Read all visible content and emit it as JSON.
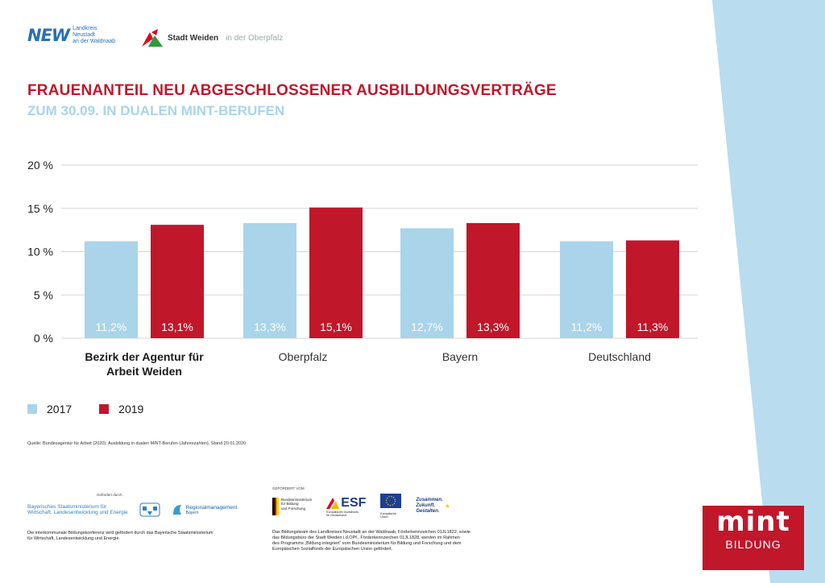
{
  "logos": {
    "new_mark": "NEW",
    "new_text": [
      "Landkreis",
      "Neustadt",
      "an der Waldnaab"
    ],
    "weiden_name": "Stadt Weiden",
    "weiden_sub": "in der Oberpfalz"
  },
  "colors": {
    "series_2017": "#a9d4ea",
    "series_2019": "#c0172b",
    "title": "#c0172b",
    "subtitle": "#a9d4ea",
    "band": "#b9dcef"
  },
  "chart_data": {
    "type": "bar",
    "title": "FRAUENANTEIL NEU ABGESCHLOSSENER AUSBILDUNGSVERTRÄGE",
    "subtitle": "ZUM 30.09. IN DUALEN MINT-BERUFEN",
    "categories": [
      "Bezirk der Agentur für\nArbeit Weiden",
      "Oberpfalz",
      "Bayern",
      "Deutschland"
    ],
    "series": [
      {
        "name": "2017",
        "values": [
          11.2,
          13.3,
          12.7,
          11.2
        ],
        "labels": [
          "11,2%",
          "13,3%",
          "12,7%",
          "11,2%"
        ]
      },
      {
        "name": "2019",
        "values": [
          13.1,
          15.1,
          13.3,
          11.3
        ],
        "labels": [
          "13,1%",
          "15,1%",
          "13,3%",
          "11,3%"
        ]
      }
    ],
    "yticks": [
      "0 %",
      "5 %",
      "10 %",
      "15 %",
      "20 %"
    ],
    "ylim": [
      0,
      20
    ],
    "grid": true,
    "legend": "bottom-left"
  },
  "source": "Quelle: Bundesagentur für Arbeit (2020): Ausbildung in dualen MINT-Berufen (Jahreszahlen), Stand 20.01.2020",
  "funding_left": {
    "caption": "Gefördert durch",
    "ministry": "Bayerisches Staatsministerium für\nWirtschaft, Landesentwicklung und Energie",
    "regional": "Regionalmanagement",
    "regional_sub": "Bayern",
    "text": "Die interkommunale Bildungskonferenz wird gefördert durch das Bayerische Staatsministerium\nfür Wirtschaft, Landesentwicklung und Energie."
  },
  "funding_right": {
    "caption": "GEFÖRDERT VOM",
    "bmbf": "Bundesministerium\nfür Bildung\nund Forschung",
    "esf": "ESF",
    "esf_sub": "Europäischer Sozialfonds\nfür Deutschland",
    "eu": "Europäische\nUnion",
    "slogan": "Zusammen.\nZukunft.\nGestalten.",
    "text": "Das Bildungsteam des Landkreises Neustadt an der Waldnaab, Förderkennzeichen 01JL1822, sowie\ndas Bildungsbüro der Stadt Weiden i.d.OPf., Förderkennzeichen 01JL1828, werden im Rahmen\ndes Programms „Bildung integriert“ vom Bundesministerium für Bildung und Forschung und dem\nEuropäischen Sozialfonds der Europäischen Union gefördert."
  },
  "mint": {
    "big": "mint",
    "small": "BILDUNG"
  }
}
